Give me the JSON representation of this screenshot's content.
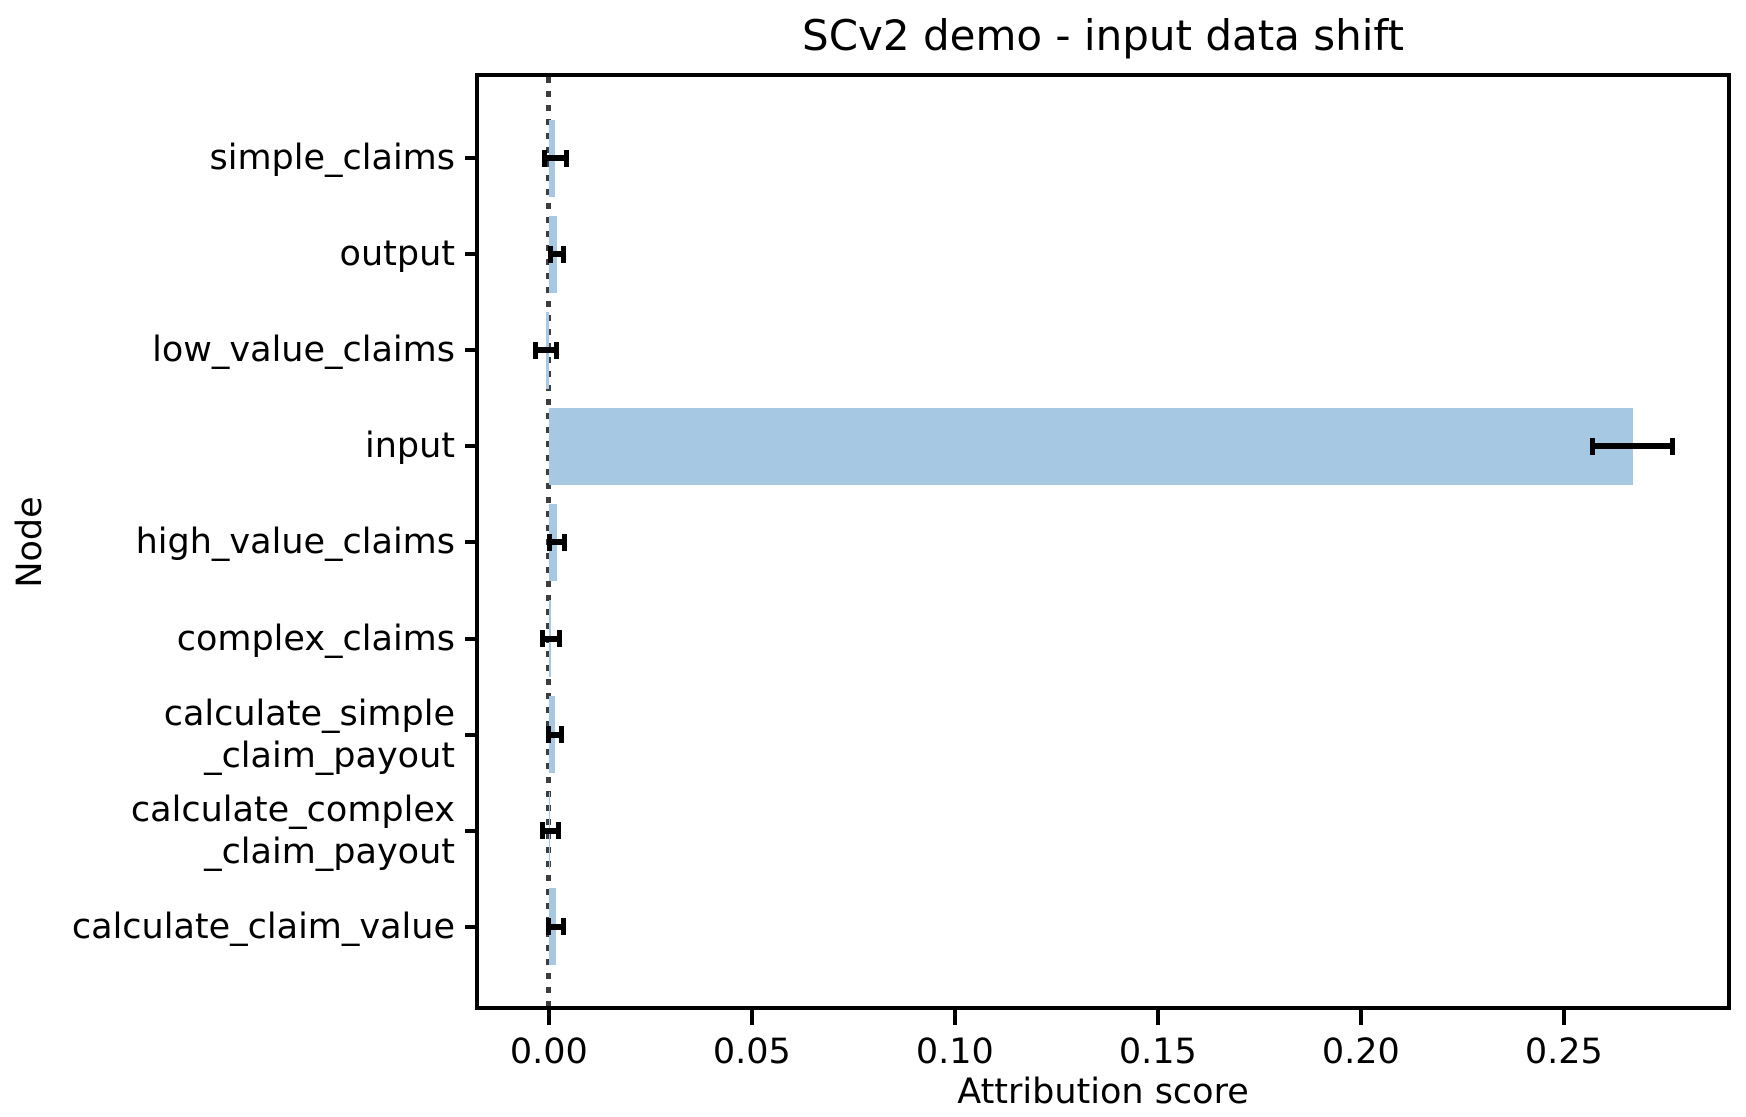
{
  "chart_data": {
    "type": "bar",
    "orientation": "horizontal",
    "title": "SCv2 demo - input data shift",
    "xlabel": "Attribution score",
    "ylabel": "Node",
    "categories": [
      "simple_claims",
      "output",
      "low_value_claims",
      "input",
      "high_value_claims",
      "complex_claims",
      "calculate_simple\n_claim_payout",
      "calculate_complex\n_claim_payout",
      "calculate_claim_value"
    ],
    "values": [
      0.0016,
      0.002,
      -0.0007,
      0.267,
      0.002,
      0.0005,
      0.0015,
      0.0004,
      0.0017
    ],
    "errors": [
      0.0029,
      0.0018,
      0.0028,
      0.01,
      0.0019,
      0.0022,
      0.0018,
      0.0021,
      0.002
    ],
    "x_tick_values": [
      0.0,
      0.05,
      0.1,
      0.15,
      0.2,
      0.25
    ],
    "x_tick_labels": [
      "0.00",
      "0.05",
      "0.10",
      "0.15",
      "0.20",
      "0.25"
    ],
    "xlim": [
      -0.0172,
      0.2902
    ],
    "grid": false,
    "legend": null,
    "zero_reference_line": true,
    "bar_color": "#a6c8e2",
    "error_bar_color": "#000000",
    "zero_line_color": "#3d3d3d",
    "spine_color": "#000000",
    "text_color": "#000000"
  }
}
